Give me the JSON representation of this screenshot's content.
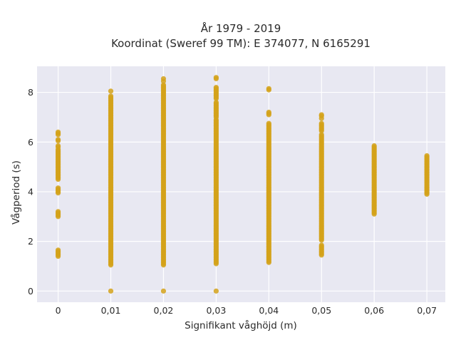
{
  "chart_data": {
    "type": "scatter",
    "title": "År 1979 - 2019",
    "subtitle": "Koordinat (Sweref 99 TM): E 374077, N 6165291",
    "xlabel": "Signifikant våghöjd (m)",
    "ylabel": "Vågperiod (s)",
    "xlim": [
      -0.004,
      0.0735
    ],
    "ylim": [
      -0.45,
      9.05
    ],
    "x_ticks": [
      0,
      0.01,
      0.02,
      0.03,
      0.04,
      0.05,
      0.06,
      0.07
    ],
    "x_tick_labels": [
      "0",
      "0,01",
      "0,02",
      "0,03",
      "0,04",
      "0,05",
      "0,06",
      "0,07"
    ],
    "y_ticks": [
      0,
      2,
      4,
      6,
      8
    ],
    "y_tick_labels": [
      "0",
      "2",
      "4",
      "6",
      "8"
    ],
    "grid": true,
    "legend": "none",
    "marker_color": "#d4a21a",
    "plot_background": "#e8e8f2",
    "series": [
      {
        "x": 0,
        "ranges": [
          [
            1.4,
            1.65
          ],
          [
            3.0,
            3.2
          ],
          [
            3.95,
            4.15
          ],
          [
            4.5,
            5.7
          ],
          [
            5.8,
            5.85
          ],
          [
            6.05,
            6.1
          ],
          [
            6.3,
            6.4
          ]
        ],
        "points": []
      },
      {
        "x": 0.01,
        "ranges": [
          [
            1.05,
            7.85
          ]
        ],
        "points": [
          0.0,
          8.05
        ]
      },
      {
        "x": 0.02,
        "ranges": [
          [
            1.05,
            8.3
          ]
        ],
        "points": [
          0.0,
          8.45,
          8.55
        ]
      },
      {
        "x": 0.03,
        "ranges": [
          [
            1.1,
            6.9
          ],
          [
            7.0,
            7.6
          ],
          [
            7.75,
            8.2
          ]
        ],
        "points": [
          0.0,
          8.55,
          8.6
        ]
      },
      {
        "x": 0.04,
        "ranges": [
          [
            1.15,
            6.75
          ],
          [
            7.1,
            7.2
          ]
        ],
        "points": [
          8.1,
          8.15
        ]
      },
      {
        "x": 0.05,
        "ranges": [
          [
            1.45,
            1.85
          ],
          [
            2.05,
            6.3
          ],
          [
            6.45,
            6.75
          ]
        ],
        "points": [
          6.95,
          7.05,
          7.1
        ]
      },
      {
        "x": 0.06,
        "ranges": [
          [
            3.1,
            5.85
          ]
        ],
        "points": []
      },
      {
        "x": 0.07,
        "ranges": [
          [
            3.9,
            5.45
          ]
        ],
        "points": []
      }
    ]
  }
}
